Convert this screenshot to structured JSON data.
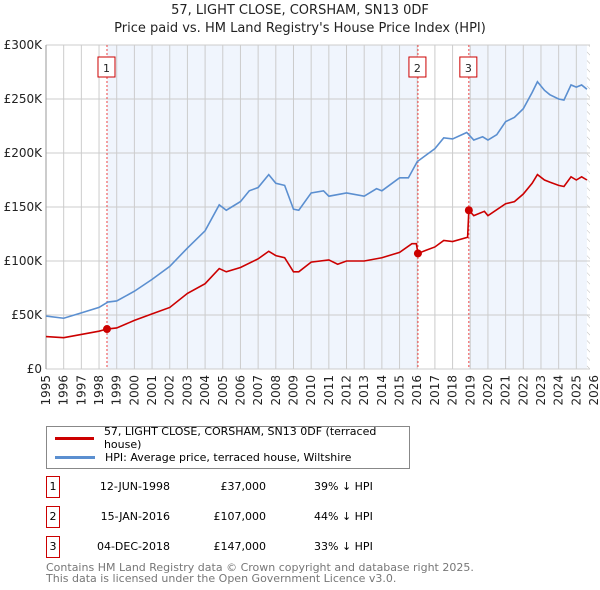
{
  "chart_data": {
    "type": "line",
    "title": "57, LIGHT CLOSE, CORSHAM, SN13 0DF",
    "subtitle": "Price paid vs. HM Land Registry's House Price Index (HPI)",
    "xlim": [
      1995,
      2026
    ],
    "ylim": [
      0,
      300000
    ],
    "yticks": [
      0,
      50000,
      100000,
      150000,
      200000,
      250000,
      300000
    ],
    "ytick_labels": [
      "£0",
      "£50K",
      "£100K",
      "£150K",
      "£200K",
      "£250K",
      "£300K"
    ],
    "xticks": [
      1995,
      1996,
      1997,
      1998,
      1999,
      2000,
      2001,
      2002,
      2003,
      2004,
      2005,
      2006,
      2007,
      2008,
      2009,
      2010,
      2011,
      2012,
      2013,
      2014,
      2015,
      2016,
      2017,
      2018,
      2019,
      2020,
      2021,
      2022,
      2023,
      2024,
      2025,
      2026
    ],
    "grid": true,
    "series": [
      {
        "name": "57, LIGHT CLOSE, CORSHAM, SN13 0DF (terraced house)",
        "color": "#cc0000",
        "x": [
          1995,
          1996,
          1997,
          1998,
          1998.45,
          1999,
          2000,
          2001,
          2002,
          2003,
          2004,
          2004.8,
          2005.2,
          2006,
          2007,
          2007.6,
          2008,
          2008.5,
          2009,
          2009.3,
          2010,
          2011,
          2011.5,
          2012,
          2013,
          2014,
          2015,
          2015.7,
          2015.95,
          2016.04,
          2016.5,
          2017,
          2017.5,
          2018,
          2018.85,
          2018.92,
          2019.2,
          2019.8,
          2020,
          2021,
          2021.5,
          2022,
          2022.5,
          2022.8,
          2023.2,
          2023.5,
          2024,
          2024.3,
          2024.7,
          2025,
          2025.3,
          2025.6
        ],
        "y": [
          30,
          29,
          32,
          35,
          37,
          38,
          45,
          51,
          57,
          70,
          79,
          93,
          90,
          94,
          102,
          109,
          105,
          103,
          90,
          90,
          99,
          101,
          97,
          100,
          100,
          103,
          108,
          116,
          116,
          107,
          110,
          113,
          119,
          118,
          122,
          147,
          142,
          146,
          142,
          153,
          155,
          162,
          172,
          180,
          175,
          173,
          170,
          169,
          178,
          175,
          178,
          175
        ]
      },
      {
        "name": "HPI: Average price, terraced house, Wiltshire",
        "color": "#5b8fd0",
        "x": [
          1995,
          1996,
          1997,
          1998,
          1998.5,
          1999,
          2000,
          2001,
          2002,
          2003,
          2004,
          2004.8,
          2005.2,
          2006,
          2006.5,
          2007,
          2007.6,
          2008,
          2008.5,
          2009,
          2009.3,
          2010,
          2010.7,
          2011,
          2012,
          2013,
          2013.7,
          2014,
          2015,
          2015.5,
          2016,
          2016.5,
          2017,
          2017.5,
          2018,
          2018.8,
          2019.2,
          2019.7,
          2020,
          2020.5,
          2021,
          2021.5,
          2022,
          2022.5,
          2022.8,
          2023.2,
          2023.5,
          2024,
          2024.3,
          2024.7,
          2025,
          2025.3,
          2025.6
        ],
        "y": [
          49,
          47,
          52,
          57,
          62,
          63,
          72,
          83,
          95,
          112,
          128,
          152,
          147,
          155,
          165,
          168,
          180,
          172,
          170,
          148,
          147,
          163,
          165,
          160,
          163,
          160,
          167,
          165,
          177,
          177,
          192,
          198,
          204,
          214,
          213,
          219,
          212,
          215,
          212,
          217,
          229,
          233,
          241,
          256,
          266,
          258,
          254,
          250,
          249,
          263,
          261,
          263,
          259
        ]
      }
    ],
    "y_unit": "thousands GBP",
    "sales": [
      {
        "num": "1",
        "x": 1998.45,
        "y": 37,
        "date": "12-JUN-1998",
        "price": "£37,000",
        "hpi": "39% ↓ HPI"
      },
      {
        "num": "2",
        "x": 2016.04,
        "y": 107,
        "date": "15-JAN-2016",
        "price": "£107,000",
        "hpi": "44% ↓ HPI"
      },
      {
        "num": "3",
        "x": 2018.92,
        "y": 147,
        "date": "04-DEC-2018",
        "price": "£147,000",
        "hpi": "33% ↓ HPI"
      }
    ],
    "forecast_start": 2025.6,
    "legend_position": "bottom"
  },
  "footer": [
    "Contains HM Land Registry data © Crown copyright and database right 2025.",
    "This data is licensed under the Open Government Licence v3.0."
  ]
}
